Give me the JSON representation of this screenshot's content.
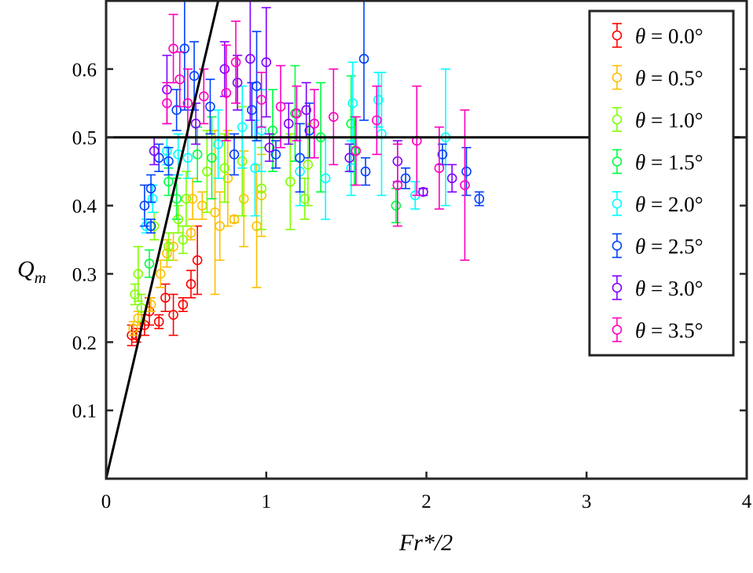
{
  "chart_data": {
    "type": "scatter",
    "title": "",
    "xlabel": "Fr*/2",
    "ylabel_main": "Q",
    "ylabel_sub": "m",
    "xlim": [
      0,
      4
    ],
    "ylim": [
      0,
      0.7
    ],
    "xticks": [
      0,
      1,
      2,
      3,
      4
    ],
    "xtick_labels": [
      "0",
      "1",
      "2",
      "3",
      "4"
    ],
    "yticks": [
      0.1,
      0.2,
      0.3,
      0.4,
      0.5,
      0.6
    ],
    "ytick_labels": [
      "0.1",
      "0.2",
      "0.3",
      "0.4",
      "0.5",
      "0.6"
    ],
    "grid": false,
    "legend_placement": "top-right",
    "reference_lines": [
      {
        "kind": "line",
        "equation": "y = x",
        "color": "#000000"
      },
      {
        "kind": "horizontal",
        "y": 0.5,
        "color": "#000000"
      }
    ],
    "point_format": "[x, y, error]",
    "series": [
      {
        "name": "θ = 0.0°",
        "color": "#ff0000",
        "points": [
          [
            0.16,
            0.21,
            0.015
          ],
          [
            0.19,
            0.21,
            0.01
          ],
          [
            0.24,
            0.225,
            0.015
          ],
          [
            0.27,
            0.245,
            0.02
          ],
          [
            0.33,
            0.23,
            0.01
          ],
          [
            0.37,
            0.265,
            0.02
          ],
          [
            0.42,
            0.24,
            0.03
          ],
          [
            0.48,
            0.255,
            0.01
          ],
          [
            0.53,
            0.285,
            0.02
          ],
          [
            0.57,
            0.32,
            0.05
          ]
        ]
      },
      {
        "name": "θ = 0.5°",
        "color": "#ffbf00",
        "points": [
          [
            0.17,
            0.22,
            0.01
          ],
          [
            0.2,
            0.235,
            0.01
          ],
          [
            0.28,
            0.255,
            0.01
          ],
          [
            0.34,
            0.3,
            0.02
          ],
          [
            0.38,
            0.33,
            0.02
          ],
          [
            0.42,
            0.34,
            0.02
          ],
          [
            0.53,
            0.36,
            0.01
          ],
          [
            0.54,
            0.41,
            0.03
          ],
          [
            0.6,
            0.4,
            0.02
          ],
          [
            0.68,
            0.39,
            0.12
          ],
          [
            0.71,
            0.37,
            0.05
          ],
          [
            0.76,
            0.44,
            0.07
          ],
          [
            0.8,
            0.38,
            0.005
          ],
          [
            0.86,
            0.41,
            0.07
          ],
          [
            0.94,
            0.37,
            0.09
          ],
          [
            0.97,
            0.415,
            0.06
          ]
        ]
      },
      {
        "name": "θ = 1.0°",
        "color": "#80ff00",
        "points": [
          [
            0.18,
            0.27,
            0.015
          ],
          [
            0.2,
            0.3,
            0.04
          ],
          [
            0.22,
            0.25,
            0.02
          ],
          [
            0.3,
            0.37,
            0.02
          ],
          [
            0.39,
            0.34,
            0.02
          ],
          [
            0.45,
            0.38,
            0.02
          ],
          [
            0.48,
            0.35,
            0.02
          ],
          [
            0.5,
            0.41,
            0.04
          ],
          [
            0.63,
            0.45,
            0.06
          ],
          [
            0.74,
            0.455,
            0.05
          ],
          [
            0.85,
            0.465,
            0.08
          ],
          [
            0.97,
            0.425,
            0.06
          ],
          [
            1.15,
            0.435,
            0.07
          ],
          [
            1.24,
            0.41,
            0.03
          ],
          [
            1.26,
            0.46,
            0.06
          ]
        ]
      },
      {
        "name": "θ = 1.5°",
        "color": "#00ff40",
        "points": [
          [
            0.27,
            0.315,
            0.02
          ],
          [
            0.39,
            0.435,
            0.02
          ],
          [
            0.44,
            0.41,
            0.03
          ],
          [
            0.57,
            0.475,
            0.04
          ],
          [
            0.66,
            0.47,
            0.06
          ],
          [
            1.04,
            0.51,
            0.06
          ],
          [
            1.18,
            0.535,
            0.07
          ],
          [
            1.34,
            0.5,
            0.08
          ],
          [
            1.53,
            0.52,
            0.07
          ],
          [
            1.55,
            0.48,
            0.05
          ],
          [
            1.81,
            0.4,
            0.025
          ]
        ]
      },
      {
        "name": "θ = 2.0°",
        "color": "#00ffff",
        "points": [
          [
            0.25,
            0.37,
            0.01
          ],
          [
            0.29,
            0.41,
            0.02
          ],
          [
            0.38,
            0.48,
            0.02
          ],
          [
            0.45,
            0.475,
            0.03
          ],
          [
            0.51,
            0.47,
            0.03
          ],
          [
            0.7,
            0.49,
            0.05
          ],
          [
            0.85,
            0.515,
            0.06
          ],
          [
            0.93,
            0.455,
            0.07
          ],
          [
            0.97,
            0.51,
            0.06
          ],
          [
            1.21,
            0.45,
            0.05
          ],
          [
            1.37,
            0.44,
            0.06
          ],
          [
            1.54,
            0.55,
            0.06
          ],
          [
            1.53,
            0.455,
            0.04
          ],
          [
            1.7,
            0.555,
            0.04
          ],
          [
            1.72,
            0.505,
            0.09
          ],
          [
            1.93,
            0.415,
            0.02
          ],
          [
            2.12,
            0.5,
            0.1
          ]
        ]
      },
      {
        "name": "θ = 2.5°",
        "color": "#0040ff",
        "points": [
          [
            0.24,
            0.4,
            0.03
          ],
          [
            0.28,
            0.425,
            0.02
          ],
          [
            0.28,
            0.37,
            0.01
          ],
          [
            0.33,
            0.47,
            0.02
          ],
          [
            0.39,
            0.465,
            0.02
          ],
          [
            0.44,
            0.54,
            0.03
          ],
          [
            0.49,
            0.63,
            0.09
          ],
          [
            0.55,
            0.59,
            0.05
          ],
          [
            0.65,
            0.545,
            0.04
          ],
          [
            0.8,
            0.475,
            0.03
          ],
          [
            0.91,
            0.54,
            0.04
          ],
          [
            0.94,
            0.575,
            0.08
          ],
          [
            1.06,
            0.475,
            0.02
          ],
          [
            1.21,
            0.47,
            0.05
          ],
          [
            1.27,
            0.51,
            0.04
          ],
          [
            1.61,
            0.615,
            0.09
          ],
          [
            1.62,
            0.45,
            0.02
          ],
          [
            1.87,
            0.44,
            0.015
          ],
          [
            2.1,
            0.475,
            0.015
          ],
          [
            2.25,
            0.45,
            0.035
          ],
          [
            2.33,
            0.41,
            0.01
          ]
        ]
      },
      {
        "name": "θ = 3.0°",
        "color": "#8000ff",
        "points": [
          [
            0.3,
            0.48,
            0.02
          ],
          [
            0.38,
            0.57,
            0.05
          ],
          [
            0.56,
            0.52,
            0.03
          ],
          [
            0.74,
            0.6,
            0.04
          ],
          [
            0.82,
            0.58,
            0.04
          ],
          [
            0.9,
            0.615,
            0.09
          ],
          [
            1.0,
            0.61,
            0.08
          ],
          [
            1.02,
            0.485,
            0.02
          ],
          [
            1.14,
            0.52,
            0.03
          ],
          [
            1.25,
            0.54,
            0.04
          ],
          [
            1.52,
            0.47,
            0.02
          ],
          [
            1.82,
            0.465,
            0.03
          ],
          [
            1.98,
            0.42,
            0.005
          ],
          [
            2.16,
            0.44,
            0.02
          ]
        ]
      },
      {
        "name": "θ = 3.5°",
        "color": "#ff00bf",
        "points": [
          [
            0.38,
            0.55,
            0.03
          ],
          [
            0.42,
            0.63,
            0.05
          ],
          [
            0.46,
            0.585,
            0.04
          ],
          [
            0.51,
            0.55,
            0.05
          ],
          [
            0.61,
            0.56,
            0.04
          ],
          [
            0.75,
            0.565,
            0.07
          ],
          [
            0.81,
            0.61,
            0.06
          ],
          [
            0.97,
            0.555,
            0.04
          ],
          [
            1.09,
            0.545,
            0.06
          ],
          [
            1.19,
            0.535,
            0.04
          ],
          [
            1.3,
            0.52,
            0.05
          ],
          [
            1.42,
            0.53,
            0.07
          ],
          [
            1.56,
            0.48,
            0.05
          ],
          [
            1.69,
            0.525,
            0.05
          ],
          [
            1.82,
            0.43,
            0.06
          ],
          [
            1.94,
            0.495,
            0.08
          ],
          [
            2.08,
            0.455,
            0.06
          ],
          [
            2.24,
            0.43,
            0.11
          ]
        ]
      }
    ]
  }
}
